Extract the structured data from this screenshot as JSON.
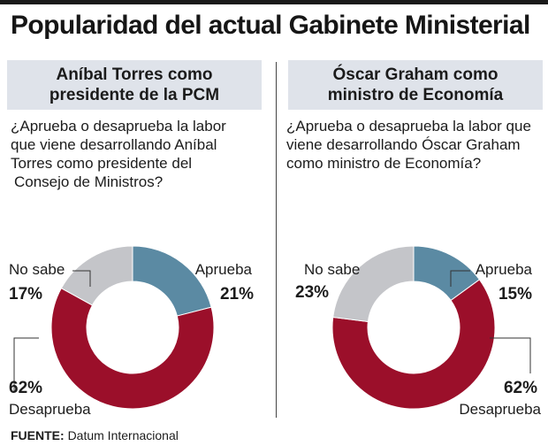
{
  "title": "Popularidad del actual Gabinete Ministerial",
  "source": {
    "label": "FUENTE:",
    "text": "Datum Internacional"
  },
  "colors": {
    "aprueba": "#5b8aa3",
    "desaprueba": "#9b0f2a",
    "no_sabe": "#c4c5c9",
    "header_bg": "#dfe3ea"
  },
  "chart_data": [
    {
      "type": "pie",
      "title_lines": [
        "Aníbal Torres como",
        "presidente de la PCM"
      ],
      "question_lines": [
        "¿Aprueba o desaprueba la labor",
        "que viene desarrollando Aníbal",
        "Torres como presidente del",
        "Consejo de Ministros?"
      ],
      "categories": [
        "Aprueba",
        "Desaprueba",
        "No sabe"
      ],
      "values": [
        21,
        62,
        17
      ],
      "labels": [
        "21%",
        "62%",
        "17%"
      ]
    },
    {
      "type": "pie",
      "title_lines": [
        "Óscar Graham como",
        "ministro de Economía"
      ],
      "question_lines": [
        "¿Aprueba o desaprueba la labor que",
        "viene desarrollando Óscar Graham",
        "como ministro de Economía?"
      ],
      "categories": [
        "Aprueba",
        "Desaprueba",
        "No sabe"
      ],
      "values": [
        15,
        62,
        23
      ],
      "labels": [
        "15%",
        "62%",
        "23%"
      ]
    }
  ]
}
